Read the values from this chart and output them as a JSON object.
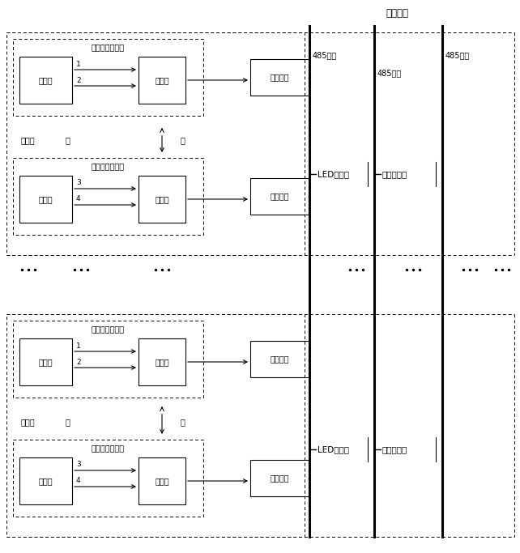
{
  "title": "报警主机",
  "bg_color": "#ffffff",
  "text_color": "#000000",
  "figsize": [
    6.42,
    6.83
  ],
  "dpi": 100,
  "detector_label": "激光对射探测器",
  "transmitter_label": "发射端",
  "receiver_label": "接收端",
  "address_label": "地址模块",
  "bus_label": "485总线",
  "led_label": "LED显示屏",
  "alarm_label": "声光报警器",
  "gate_label": "出入口",
  "out_label": "出",
  "in_label": "进",
  "beam1": "1",
  "beam2": "2",
  "beam3": "3",
  "beam4": "4"
}
